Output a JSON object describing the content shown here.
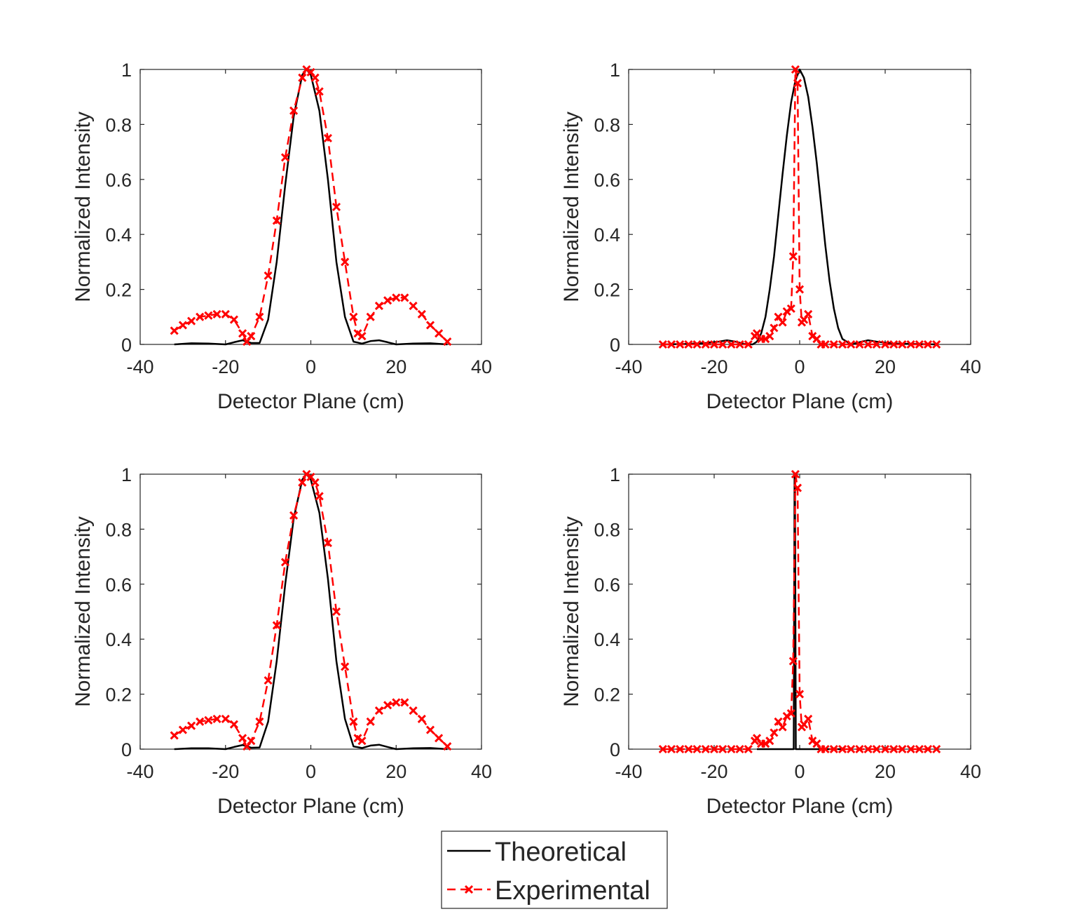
{
  "colors": {
    "theoretical": "#000000",
    "experimental": "#ff0000",
    "axes": "#262626",
    "background": "#ffffff"
  },
  "legend": {
    "items": [
      {
        "label": "Theoretical",
        "style": "solid-line",
        "color": "#000000"
      },
      {
        "label": "Experimental",
        "style": "dashed-line-x-marker",
        "color": "#ff0000"
      }
    ]
  },
  "chart_data": [
    {
      "type": "line",
      "xlabel": "Detector Plane (cm)",
      "ylabel": "Normalized Intensity",
      "xlim": [
        -40,
        40
      ],
      "ylim": [
        0,
        1
      ],
      "xticks": [
        "-40",
        "-20",
        "0",
        "20",
        "40"
      ],
      "yticks": [
        "0",
        "0.2",
        "0.4",
        "0.6",
        "0.8",
        "1"
      ],
      "series": [
        {
          "name": "Theoretical",
          "style": "solid",
          "x": [
            -32,
            -28,
            -24,
            -20,
            -18,
            -16,
            -14,
            -12,
            -10,
            -8,
            -6,
            -4,
            -2,
            -1,
            0,
            2,
            4,
            6,
            8,
            10,
            12,
            14,
            16,
            18,
            20,
            24,
            28,
            32
          ],
          "y": [
            0.0,
            0.004,
            0.003,
            0.0,
            0.008,
            0.015,
            0.005,
            0.005,
            0.09,
            0.3,
            0.58,
            0.83,
            0.98,
            1.0,
            0.98,
            0.85,
            0.6,
            0.3,
            0.1,
            0.01,
            0.003,
            0.012,
            0.015,
            0.008,
            0.0,
            0.003,
            0.004,
            0.0
          ]
        },
        {
          "name": "Experimental",
          "style": "dashed-x",
          "x": [
            -32,
            -30,
            -28,
            -26,
            -24,
            -22,
            -20,
            -18,
            -16,
            -15,
            -14,
            -12,
            -10,
            -8,
            -6,
            -4,
            -2,
            -1,
            0,
            1,
            2,
            4,
            6,
            8,
            10,
            11,
            12,
            14,
            16,
            18,
            20,
            22,
            24,
            26,
            28,
            30,
            32
          ],
          "y": [
            0.05,
            0.07,
            0.085,
            0.1,
            0.105,
            0.11,
            0.11,
            0.09,
            0.04,
            0.01,
            0.03,
            0.1,
            0.25,
            0.45,
            0.68,
            0.85,
            0.97,
            1.0,
            0.99,
            0.97,
            0.92,
            0.75,
            0.5,
            0.3,
            0.1,
            0.04,
            0.03,
            0.1,
            0.14,
            0.16,
            0.17,
            0.17,
            0.14,
            0.11,
            0.07,
            0.04,
            0.01
          ]
        }
      ]
    },
    {
      "type": "line",
      "xlabel": "Detector Plane (cm)",
      "ylabel": "Normalized Intensity",
      "xlim": [
        -40,
        40
      ],
      "ylim": [
        0,
        1
      ],
      "xticks": [
        "-40",
        "-20",
        "0",
        "20",
        "40"
      ],
      "yticks": [
        "0",
        "0.2",
        "0.4",
        "0.6",
        "0.8",
        "1"
      ],
      "series": [
        {
          "name": "Theoretical",
          "style": "solid",
          "x": [
            -32,
            -26,
            -22,
            -19,
            -17,
            -15,
            -13,
            -11,
            -10,
            -9,
            -8,
            -7,
            -6,
            -5,
            -4,
            -3,
            -2,
            -1,
            0,
            1,
            2,
            3,
            4,
            5,
            6,
            7,
            8,
            9,
            10,
            12,
            14,
            16,
            18,
            22,
            26,
            32
          ],
          "y": [
            0.0,
            0.002,
            0.005,
            0.01,
            0.015,
            0.01,
            0.002,
            0.0,
            0.01,
            0.04,
            0.1,
            0.2,
            0.32,
            0.47,
            0.62,
            0.76,
            0.88,
            0.96,
            1.0,
            0.97,
            0.9,
            0.79,
            0.66,
            0.51,
            0.36,
            0.23,
            0.13,
            0.06,
            0.02,
            0.0,
            0.008,
            0.015,
            0.01,
            0.003,
            0.002,
            0.0
          ]
        },
        {
          "name": "Experimental",
          "style": "dashed-x",
          "x": [
            -32,
            -30,
            -28,
            -26,
            -24,
            -22,
            -20,
            -18,
            -16,
            -14,
            -12,
            -10.5,
            -10,
            -9,
            -8,
            -7,
            -6,
            -5,
            -4,
            -3,
            -2,
            -1.5,
            -1,
            -0.5,
            0,
            0.5,
            1,
            2,
            3,
            4,
            5,
            6,
            8,
            10,
            12,
            14,
            16,
            18,
            20,
            22,
            24,
            26,
            28,
            30,
            32
          ],
          "y": [
            0,
            0,
            0,
            0,
            0,
            0,
            0,
            0,
            0,
            0,
            0,
            0.03,
            0.04,
            0.02,
            0.02,
            0.03,
            0.06,
            0.1,
            0.08,
            0.12,
            0.13,
            0.32,
            1.0,
            0.95,
            0.2,
            0.08,
            0.09,
            0.11,
            0.03,
            0.02,
            0.0,
            0,
            0,
            0,
            0,
            0,
            0,
            0,
            0,
            0,
            0,
            0,
            0,
            0,
            0
          ]
        }
      ]
    },
    {
      "type": "line",
      "xlabel": "Detector Plane (cm)",
      "ylabel": "Normalized Intensity",
      "xlim": [
        -40,
        40
      ],
      "ylim": [
        0,
        1
      ],
      "xticks": [
        "-40",
        "-20",
        "0",
        "20",
        "40"
      ],
      "yticks": [
        "0",
        "0.2",
        "0.4",
        "0.6",
        "0.8",
        "1"
      ],
      "series": [
        {
          "name": "Theoretical",
          "style": "solid",
          "x": [
            -32,
            -28,
            -24,
            -20,
            -18,
            -16,
            -14,
            -12,
            -10,
            -8,
            -6,
            -4,
            -2,
            -1,
            0,
            2,
            4,
            6,
            8,
            10,
            12,
            14,
            16,
            18,
            20,
            24,
            28,
            32
          ],
          "y": [
            0.0,
            0.003,
            0.003,
            0.0,
            0.008,
            0.015,
            0.005,
            0.006,
            0.1,
            0.32,
            0.6,
            0.84,
            0.98,
            1.0,
            0.98,
            0.86,
            0.62,
            0.32,
            0.11,
            0.01,
            0.004,
            0.013,
            0.016,
            0.008,
            0.0,
            0.003,
            0.004,
            0.0
          ]
        },
        {
          "name": "Experimental",
          "style": "dashed-x",
          "x": [
            -32,
            -30,
            -28,
            -26,
            -24,
            -22,
            -20,
            -18,
            -16,
            -15,
            -14,
            -12,
            -10,
            -8,
            -6,
            -4,
            -2,
            -1,
            0,
            1,
            2,
            4,
            6,
            8,
            10,
            11,
            12,
            14,
            16,
            18,
            20,
            22,
            24,
            26,
            28,
            30,
            32
          ],
          "y": [
            0.05,
            0.07,
            0.085,
            0.1,
            0.105,
            0.11,
            0.11,
            0.09,
            0.04,
            0.01,
            0.03,
            0.1,
            0.25,
            0.45,
            0.68,
            0.85,
            0.97,
            1.0,
            0.99,
            0.97,
            0.92,
            0.75,
            0.5,
            0.3,
            0.1,
            0.04,
            0.03,
            0.1,
            0.14,
            0.16,
            0.17,
            0.17,
            0.14,
            0.11,
            0.07,
            0.04,
            0.01
          ]
        }
      ]
    },
    {
      "type": "line",
      "xlabel": "Detector Plane (cm)",
      "ylabel": "Normalized Intensity",
      "xlim": [
        -40,
        40
      ],
      "ylim": [
        0,
        1
      ],
      "xticks": [
        "-40",
        "-20",
        "0",
        "20",
        "40"
      ],
      "yticks": [
        "0",
        "0.2",
        "0.4",
        "0.6",
        "0.8",
        "1"
      ],
      "series": [
        {
          "name": "Theoretical",
          "style": "solid",
          "x": [
            -10,
            -1.4,
            -1.3,
            -1.2,
            -1.1,
            -1.0,
            -0.9,
            -0.8,
            10
          ],
          "y": [
            0,
            0,
            0.5,
            1.0,
            1.0,
            0.5,
            0,
            0,
            0
          ]
        },
        {
          "name": "Experimental",
          "style": "dashed-x",
          "x": [
            -32,
            -30,
            -28,
            -26,
            -24,
            -22,
            -20,
            -18,
            -16,
            -14,
            -12,
            -10.5,
            -10,
            -9,
            -8,
            -7,
            -6,
            -5,
            -4,
            -3,
            -2,
            -1.5,
            -1,
            -0.5,
            0,
            0.5,
            1,
            2,
            3,
            4,
            5,
            6,
            8,
            10,
            12,
            14,
            16,
            18,
            20,
            22,
            24,
            26,
            28,
            30,
            32
          ],
          "y": [
            0,
            0,
            0,
            0,
            0,
            0,
            0,
            0,
            0,
            0,
            0,
            0.03,
            0.04,
            0.02,
            0.02,
            0.03,
            0.06,
            0.1,
            0.08,
            0.12,
            0.13,
            0.32,
            1.0,
            0.95,
            0.2,
            0.08,
            0.09,
            0.11,
            0.03,
            0.02,
            0.0,
            0,
            0,
            0,
            0,
            0,
            0,
            0,
            0,
            0,
            0,
            0,
            0,
            0,
            0
          ]
        }
      ]
    }
  ]
}
